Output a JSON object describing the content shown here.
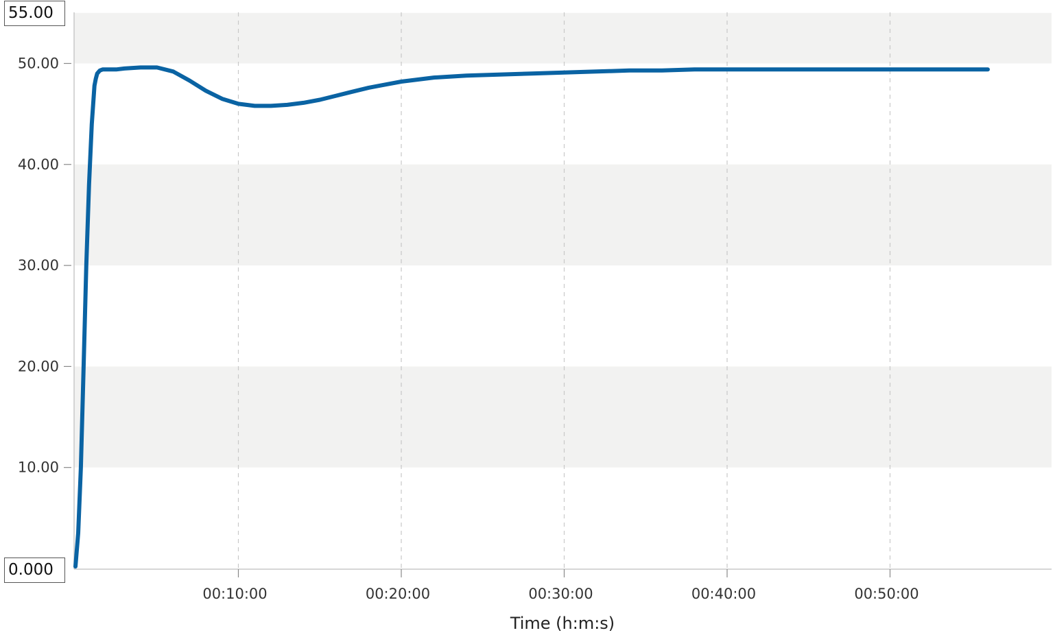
{
  "range_inputs": {
    "y_max": "55.00",
    "y_min": "0.000"
  },
  "chart_data": {
    "type": "line",
    "title": "",
    "xlabel": "Time (h:m:s)",
    "ylabel": "",
    "ylim": [
      0,
      55
    ],
    "xlim_seconds": [
      0,
      3600
    ],
    "y_ticks": [
      10,
      20,
      30,
      40,
      50
    ],
    "y_tick_labels": [
      "10.00",
      "20.00",
      "30.00",
      "40.00",
      "50.00"
    ],
    "x_ticks_seconds": [
      600,
      1200,
      1800,
      2400,
      3000
    ],
    "x_tick_labels": [
      "00:10:00",
      "00:20:00",
      "00:30:00",
      "00:40:00",
      "00:50:00"
    ],
    "grid": "vertical dashed, horizontal alternating bands",
    "band_color": "#f2f2f1",
    "line_color": "#0a63a3",
    "series": [
      {
        "x_seconds": [
          0,
          10,
          20,
          30,
          40,
          50,
          60,
          70,
          75,
          80,
          90,
          100,
          120,
          150,
          180,
          240,
          300,
          360,
          420,
          480,
          540,
          600,
          660,
          720,
          780,
          840,
          900,
          960,
          1020,
          1080,
          1140,
          1200,
          1320,
          1440,
          1560,
          1680,
          1800,
          1920,
          2040,
          2160,
          2280,
          2400,
          2520,
          2640,
          2760,
          2880,
          3000,
          3120,
          3240,
          3360
        ],
        "y": [
          0.2,
          3.5,
          10,
          20,
          30,
          38,
          44,
          47.8,
          48.5,
          49,
          49.3,
          49.4,
          49.4,
          49.4,
          49.5,
          49.6,
          49.6,
          49.2,
          48.3,
          47.3,
          46.5,
          46,
          45.8,
          45.8,
          45.9,
          46.1,
          46.4,
          46.8,
          47.2,
          47.6,
          47.9,
          48.2,
          48.6,
          48.8,
          48.9,
          49.0,
          49.1,
          49.2,
          49.3,
          49.3,
          49.4,
          49.4,
          49.4,
          49.4,
          49.4,
          49.4,
          49.4,
          49.4,
          49.4,
          49.4
        ]
      }
    ]
  }
}
